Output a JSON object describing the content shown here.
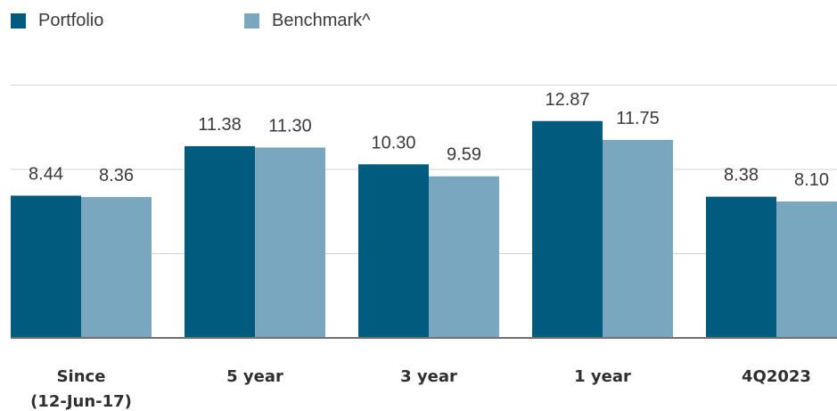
{
  "chart_data": {
    "type": "bar",
    "title": "",
    "categories": [
      "Since\n(12-Jun-17)",
      "5 year",
      "3 year",
      "1 year",
      "4Q2023"
    ],
    "series": [
      {
        "name": "Portfolio",
        "values": [
          8.44,
          11.38,
          10.3,
          12.87,
          8.38
        ],
        "labels": [
          "8.44",
          "11.38",
          "10.30",
          "12.87",
          "8.38"
        ],
        "color": "#005b7f"
      },
      {
        "name": "Benchmark^",
        "values": [
          8.36,
          11.3,
          9.59,
          11.75,
          8.1
        ],
        "labels": [
          "8.36",
          "11.30",
          "9.59",
          "11.75",
          "8.10"
        ],
        "color": "#7aa7c0"
      }
    ],
    "ylim": [
      0,
      15
    ],
    "grid": true,
    "legend": "top-left",
    "xlabel": "",
    "ylabel": ""
  }
}
